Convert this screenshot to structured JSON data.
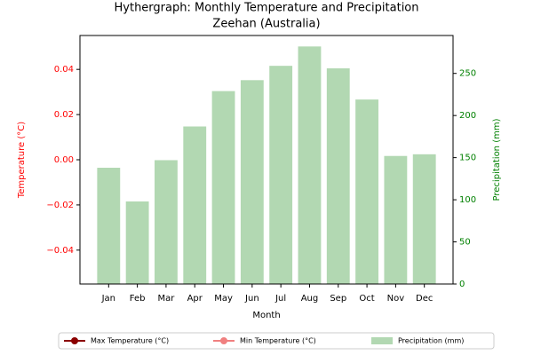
{
  "chart_data": {
    "type": "bar",
    "title": "Hythergraph: Monthly Temperature and Precipitation",
    "subtitle": "Zeehan (Australia)",
    "x_label": "Month",
    "y_label": "Temperature (°C)",
    "y2_label": "Precipitation (mm)",
    "categories": [
      "Jan",
      "Feb",
      "Mar",
      "Apr",
      "May",
      "Jun",
      "Jul",
      "Aug",
      "Sep",
      "Oct",
      "Nov",
      "Dec"
    ],
    "series": [
      {
        "name": "Max Temperature (°C)",
        "type": "line",
        "color": "#8b0000",
        "values": [
          null,
          null,
          null,
          null,
          null,
          null,
          null,
          null,
          null,
          null,
          null,
          null
        ]
      },
      {
        "name": "Min Temperature (°C)",
        "type": "line",
        "color": "#f08080",
        "values": [
          null,
          null,
          null,
          null,
          null,
          null,
          null,
          null,
          null,
          null,
          null,
          null
        ]
      },
      {
        "name": "Precipitation (mm)",
        "type": "bar",
        "axis": "y2",
        "color": "#b2d8b2",
        "values": [
          138,
          98,
          147,
          187,
          229,
          242,
          259,
          282,
          256,
          219,
          152,
          154
        ]
      }
    ],
    "ylim": [
      -0.055,
      0.055
    ],
    "yticks": [
      {
        "value": -0.04,
        "label": "−0.04"
      },
      {
        "value": -0.02,
        "label": "−0.02"
      },
      {
        "value": 0,
        "label": "0.00"
      },
      {
        "value": 0.02,
        "label": "0.02"
      },
      {
        "value": 0.04,
        "label": "0.04"
      }
    ],
    "y2lim": [
      0,
      295
    ],
    "y2ticks": [
      0,
      50,
      100,
      150,
      200,
      250
    ],
    "y_color": "#ff0000",
    "y2_color": "#008000",
    "legend": "bottom"
  }
}
